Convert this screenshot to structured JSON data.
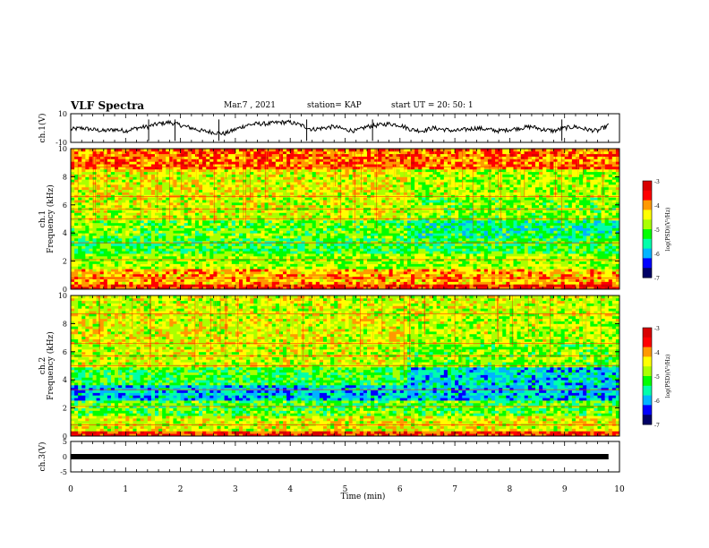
{
  "header": {
    "title": "VLF Spectra",
    "date": "Mar.7 , 2021",
    "station": "station= KAP",
    "start": "start UT = 20: 50: 1"
  },
  "colors": {
    "colormap": [
      "#000066",
      "#0000ff",
      "#00b4ff",
      "#00ffaa",
      "#00ff00",
      "#aaff00",
      "#ffff00",
      "#ff9900",
      "#ff0000",
      "#d80000"
    ]
  },
  "chart_data": [
    {
      "id": "ch1-waveform",
      "type": "line",
      "ylabel": "ch.1(V)",
      "ylim": [
        -10,
        10
      ],
      "yticks": [
        "10",
        "-10"
      ],
      "xlim": [
        0,
        10
      ],
      "x": [
        0,
        0.2,
        0.4,
        0.6,
        0.8,
        1.0,
        1.2,
        1.4,
        1.6,
        1.8,
        2.0,
        2.2,
        2.4,
        2.6,
        2.8,
        3.0,
        3.2,
        3.4,
        3.6,
        3.8,
        4.0,
        4.2,
        4.4,
        4.6,
        4.8,
        5.0,
        5.2,
        5.4,
        5.6,
        5.8,
        6.0,
        6.2,
        6.4,
        6.6,
        6.8,
        7.0,
        7.2,
        7.4,
        7.6,
        7.8,
        8.0,
        8.2,
        8.4,
        8.6,
        8.8,
        9.0,
        9.2,
        9.4,
        9.6,
        9.8
      ],
      "y": [
        -1,
        0,
        -1,
        -2,
        -1,
        -2,
        0,
        1,
        3,
        4,
        2,
        0,
        -2,
        -3,
        -4,
        -1,
        2,
        3,
        3,
        4,
        4,
        2,
        -1,
        0,
        1,
        -1,
        -2,
        1,
        2,
        3,
        2,
        -1,
        -2,
        0,
        -1,
        -2,
        -1,
        0,
        -1,
        -2,
        -1,
        0,
        1,
        -1,
        -2,
        0,
        1,
        -1,
        -2,
        2
      ]
    },
    {
      "id": "ch1-spectrogram",
      "type": "heatmap",
      "ylabel": "ch.1\nFrequency (kHz)",
      "xlim": [
        0,
        10
      ],
      "ylim": [
        0,
        10
      ],
      "yticks": [
        "0",
        "2",
        "4",
        "6",
        "8",
        "10"
      ],
      "colorbar": {
        "label": "log(PSD)(V²/Hz)",
        "range": [
          -7,
          -3
        ],
        "ticks": [
          "-3",
          "-4",
          "-5",
          "-6",
          "-7"
        ]
      }
    },
    {
      "id": "ch2-spectrogram",
      "type": "heatmap",
      "ylabel": "ch.2\nFrequency (kHz)",
      "xlim": [
        0,
        10
      ],
      "ylim": [
        0,
        10
      ],
      "yticks": [
        "0",
        "2",
        "4",
        "6",
        "8",
        "10"
      ],
      "colorbar": {
        "label": "log(PSD)(V²/Hz)",
        "range": [
          -7,
          -3
        ],
        "ticks": [
          "-3",
          "-4",
          "-5",
          "-6",
          "-7"
        ]
      }
    },
    {
      "id": "ch3-trace",
      "type": "line",
      "ylabel": "ch.3(V)",
      "ylim": [
        -5,
        5
      ],
      "yticks": [
        "5",
        "0",
        "-5"
      ],
      "xlim": [
        0,
        10
      ],
      "x": [
        0,
        9.8
      ],
      "y": [
        0,
        0
      ]
    }
  ],
  "xaxis": {
    "label": "Time (min)",
    "ticks": [
      "0",
      "1",
      "2",
      "3",
      "4",
      "5",
      "6",
      "7",
      "8",
      "9",
      "10"
    ]
  }
}
